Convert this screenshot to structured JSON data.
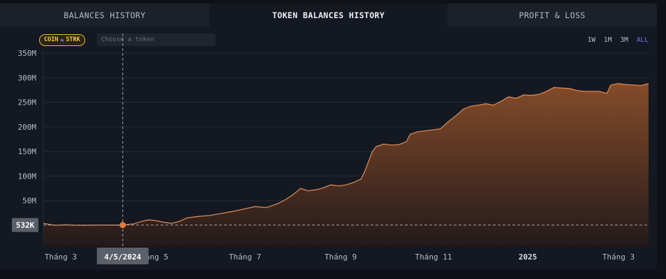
{
  "tabs": [
    {
      "label": "BALANCES HISTORY",
      "active": false
    },
    {
      "label": "TOKEN BALANCES HISTORY",
      "active": true
    },
    {
      "label": "PROFIT & LOSS",
      "active": false
    }
  ],
  "filter": {
    "badge_left": "COIN",
    "badge_icon": "swap-icon",
    "badge_right": "STRK",
    "token_placeholder": "Choose a token"
  },
  "ranges": [
    {
      "label": "1W",
      "active": false
    },
    {
      "label": "1M",
      "active": false
    },
    {
      "label": "3M",
      "active": false
    },
    {
      "label": "ALL",
      "active": true
    }
  ],
  "colors": {
    "accent": "#e07a3a",
    "area_top": "#8a4e2a",
    "area_bottom": "#241a1a",
    "line": "#d98650",
    "range_active": "#7d6dff",
    "badge": "#f2c94c"
  },
  "chart_data": {
    "type": "area",
    "x_ticks": [
      "Tháng 3",
      "Tháng 5",
      "Tháng 7",
      "Tháng 9",
      "Tháng 11",
      "2025",
      "Tháng 3"
    ],
    "y_ticks": [
      "350M",
      "300M",
      "250M",
      "200M",
      "150M",
      "100M",
      "50M"
    ],
    "ylim": [
      0,
      350000000
    ],
    "grid": true,
    "crosshair": {
      "date_label": "4/5/2024",
      "value_label": "532K",
      "value": 532000
    },
    "series": [
      {
        "values": [
          [
            0,
            4000000
          ],
          [
            3,
            0
          ],
          [
            6,
            1000000
          ],
          [
            9,
            0
          ],
          [
            12,
            300000
          ],
          [
            15,
            500000
          ],
          [
            18,
            400000
          ],
          [
            21,
            532000
          ],
          [
            24,
            3000000
          ],
          [
            26,
            8000000
          ],
          [
            28,
            11000000
          ],
          [
            30,
            9000000
          ],
          [
            32,
            6000000
          ],
          [
            34,
            4000000
          ],
          [
            36,
            8000000
          ],
          [
            38,
            15000000
          ],
          [
            41,
            18000000
          ],
          [
            44,
            20000000
          ],
          [
            47,
            24000000
          ],
          [
            50,
            28000000
          ],
          [
            53,
            33000000
          ],
          [
            56,
            38000000
          ],
          [
            59,
            36000000
          ],
          [
            62,
            44000000
          ],
          [
            64,
            52000000
          ],
          [
            66,
            62000000
          ],
          [
            68,
            75000000
          ],
          [
            70,
            70000000
          ],
          [
            72,
            72000000
          ],
          [
            74,
            76000000
          ],
          [
            76,
            82000000
          ],
          [
            78,
            80000000
          ],
          [
            80,
            82000000
          ],
          [
            82,
            87000000
          ],
          [
            84,
            94000000
          ],
          [
            85,
            110000000
          ],
          [
            86,
            130000000
          ],
          [
            87,
            150000000
          ],
          [
            88,
            160000000
          ],
          [
            90,
            165000000
          ],
          [
            92,
            163000000
          ],
          [
            94,
            164000000
          ],
          [
            96,
            170000000
          ],
          [
            97,
            185000000
          ],
          [
            99,
            190000000
          ],
          [
            101,
            192000000
          ],
          [
            103,
            194000000
          ],
          [
            105,
            196000000
          ],
          [
            107,
            210000000
          ],
          [
            109,
            222000000
          ],
          [
            111,
            236000000
          ],
          [
            113,
            242000000
          ],
          [
            115,
            244000000
          ],
          [
            117,
            247000000
          ],
          [
            119,
            244000000
          ],
          [
            121,
            252000000
          ],
          [
            123,
            261000000
          ],
          [
            125,
            258000000
          ],
          [
            127,
            265000000
          ],
          [
            129,
            264000000
          ],
          [
            131,
            266000000
          ],
          [
            133,
            272000000
          ],
          [
            135,
            280000000
          ],
          [
            137,
            279000000
          ],
          [
            139,
            278000000
          ],
          [
            141,
            274000000
          ],
          [
            143,
            272000000
          ],
          [
            145,
            272000000
          ],
          [
            147,
            272000000
          ],
          [
            149,
            268000000
          ],
          [
            150,
            285000000
          ],
          [
            152,
            288000000
          ],
          [
            154,
            286000000
          ],
          [
            156,
            285000000
          ],
          [
            158,
            284000000
          ],
          [
            160,
            288000000
          ]
        ]
      }
    ]
  }
}
